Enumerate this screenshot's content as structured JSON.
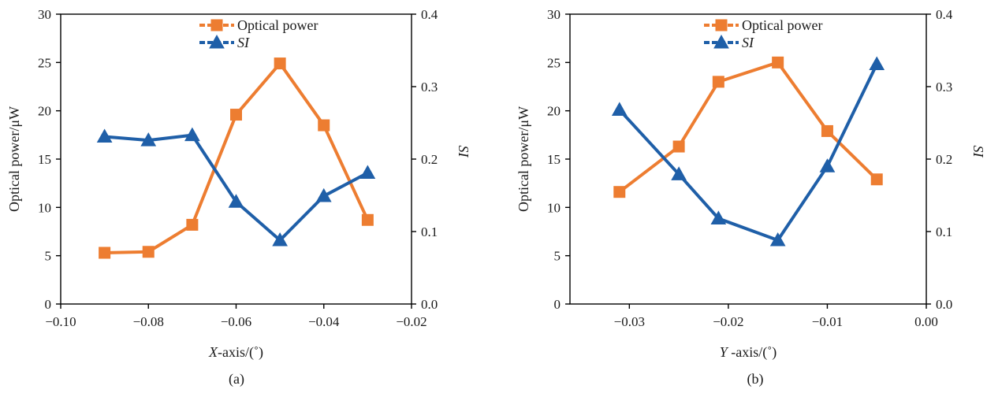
{
  "colors": {
    "optical": "#ED7D31",
    "si": "#1F5FA8",
    "axis": "#000000"
  },
  "chart_data": [
    {
      "type": "line",
      "caption": "(a)",
      "xlabel": {
        "italic": "X",
        "rest": "-axis/(˚)"
      },
      "ylabel": "Optical power/μW",
      "y2label": "SI",
      "xlim": [
        -0.1,
        -0.02
      ],
      "xticks": [
        -0.1,
        -0.08,
        -0.06,
        -0.04,
        -0.02
      ],
      "xtick_labels": [
        "−0.10",
        "−0.08",
        "−0.06",
        "−0.04",
        "−0.02"
      ],
      "ylim": [
        0,
        30
      ],
      "yticks": [
        0,
        5,
        10,
        15,
        20,
        25,
        30
      ],
      "ytick_labels": [
        "0",
        "5",
        "10",
        "15",
        "20",
        "25",
        "30"
      ],
      "y2lim": [
        0,
        0.4
      ],
      "y2ticks": [
        0,
        0.1,
        0.2,
        0.3,
        0.4
      ],
      "y2tick_labels": [
        "0.0",
        "0.1",
        "0.2",
        "0.3",
        "0.4"
      ],
      "legend": "top-center",
      "series": [
        {
          "name": "Optical power",
          "axis": "left",
          "marker": "square",
          "color": "#ED7D31",
          "x": [
            -0.09,
            -0.08,
            -0.07,
            -0.06,
            -0.05,
            -0.04,
            -0.03
          ],
          "y": [
            5.3,
            5.4,
            8.2,
            19.6,
            24.9,
            18.5,
            8.7
          ]
        },
        {
          "name": "SI",
          "axis": "right",
          "marker": "triangle",
          "color": "#1F5FA8",
          "x": [
            -0.09,
            -0.08,
            -0.07,
            -0.06,
            -0.05,
            -0.04,
            -0.03
          ],
          "y": [
            0.231,
            0.226,
            0.233,
            0.141,
            0.088,
            0.149,
            0.181
          ]
        }
      ]
    },
    {
      "type": "line",
      "caption": "(b)",
      "xlabel": {
        "italic": "Y",
        "rest": " -axis/(˚)"
      },
      "ylabel": "Optical power/μW",
      "y2label": "SI",
      "xlim": [
        -0.036,
        0.0
      ],
      "xticks": [
        -0.03,
        -0.02,
        -0.01,
        0.0
      ],
      "xtick_labels": [
        "−0.03",
        "−0.02",
        "−0.01",
        "0.00"
      ],
      "ylim": [
        0,
        30
      ],
      "yticks": [
        0,
        5,
        10,
        15,
        20,
        25,
        30
      ],
      "ytick_labels": [
        "0",
        "5",
        "10",
        "15",
        "20",
        "25",
        "30"
      ],
      "y2lim": [
        0,
        0.4
      ],
      "y2ticks": [
        0,
        0.1,
        0.2,
        0.3,
        0.4
      ],
      "y2tick_labels": [
        "0.0",
        "0.1",
        "0.2",
        "0.3",
        "0.4"
      ],
      "legend": "top-center",
      "series": [
        {
          "name": "Optical power",
          "axis": "left",
          "marker": "square",
          "color": "#ED7D31",
          "x": [
            -0.031,
            -0.025,
            -0.021,
            -0.015,
            -0.01,
            -0.005
          ],
          "y": [
            11.6,
            16.3,
            23.0,
            25.0,
            17.9,
            12.9
          ]
        },
        {
          "name": "SI",
          "axis": "right",
          "marker": "triangle",
          "color": "#1F5FA8",
          "x": [
            -0.031,
            -0.025,
            -0.021,
            -0.015,
            -0.01,
            -0.005
          ],
          "y": [
            0.268,
            0.179,
            0.118,
            0.088,
            0.19,
            0.331
          ]
        }
      ]
    }
  ]
}
